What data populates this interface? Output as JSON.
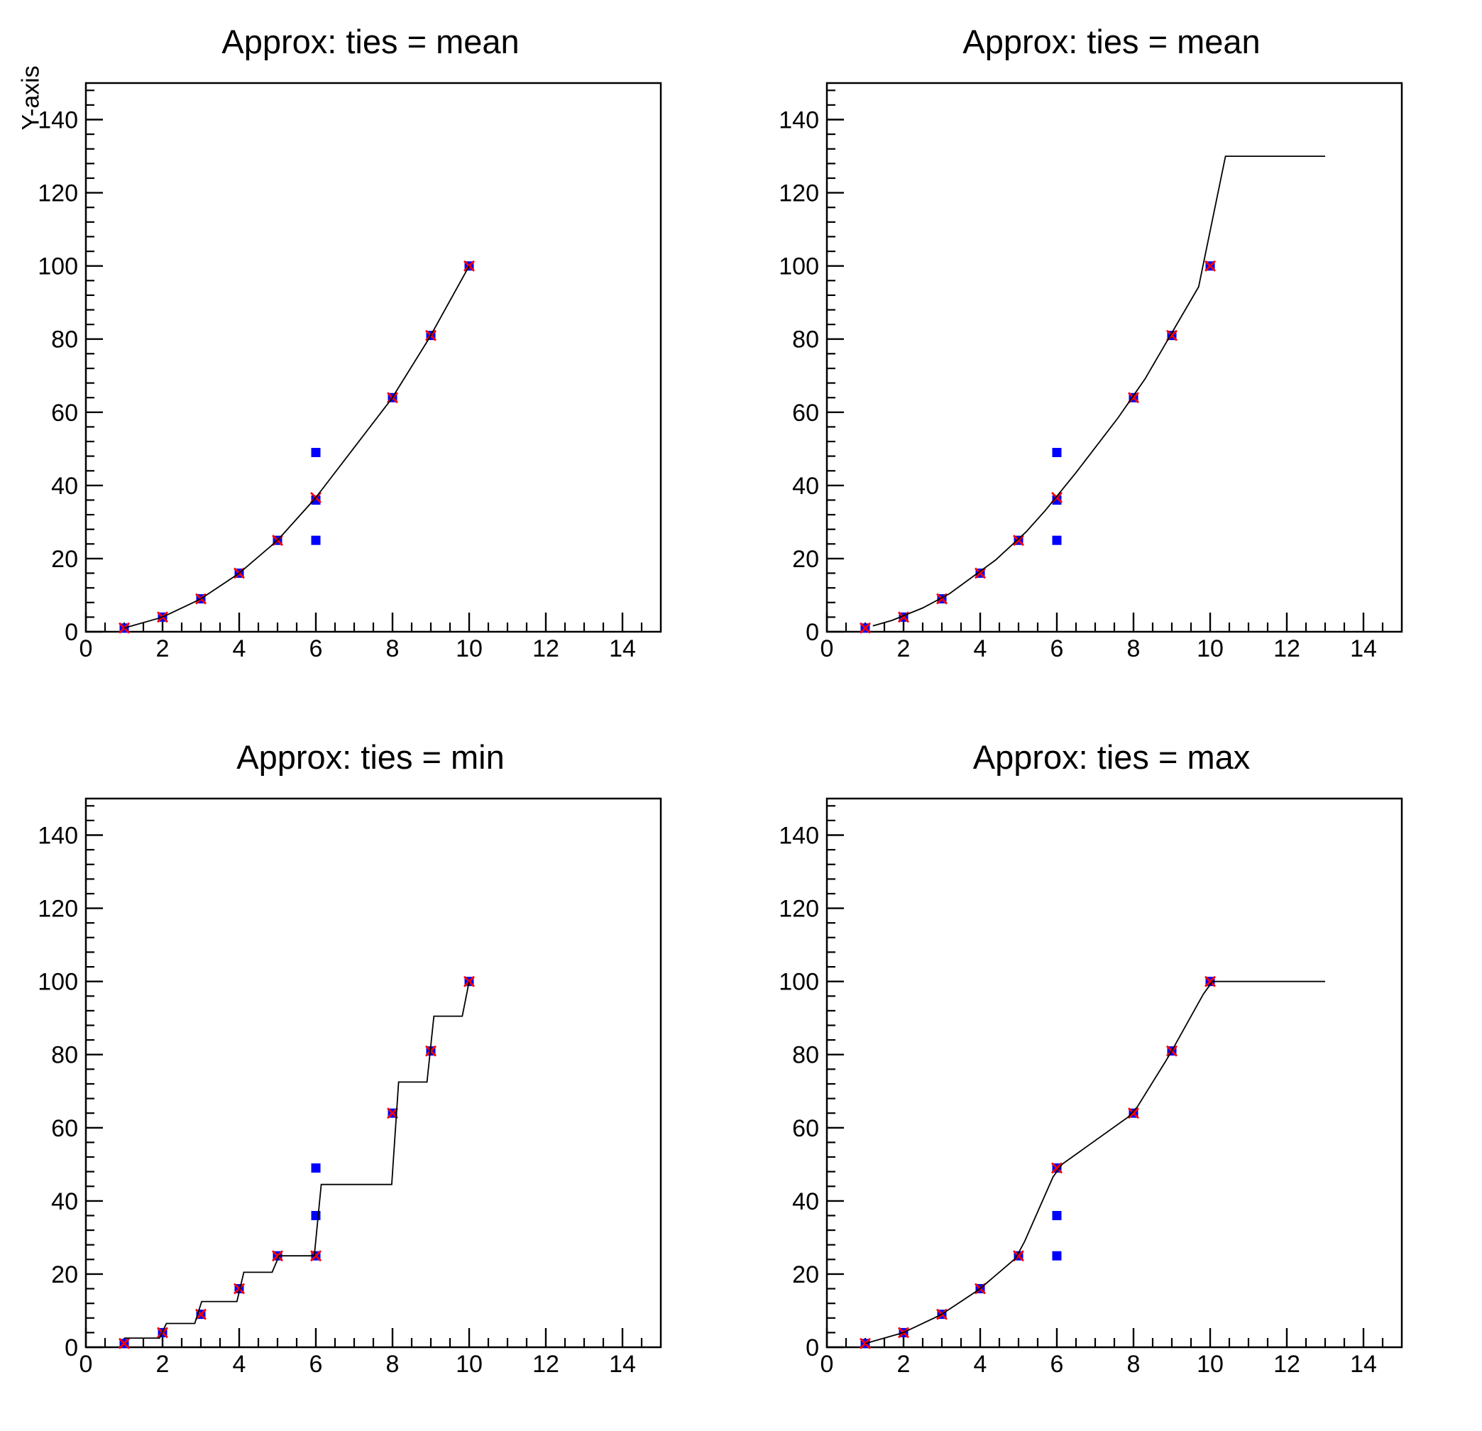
{
  "page": {
    "background": "#ffffff",
    "description": "ROOT TGraphSmooth::Approx demo canvas with four pads"
  },
  "colors": {
    "input_marker_blue": "#0000ff",
    "approx_node_red": "#ff0000",
    "curve_black": "#000000",
    "frame_black": "#000000"
  },
  "chart_data": {
    "type": "line",
    "layout": "2x2-grid",
    "grid": false,
    "legend": "none",
    "x_range": [
      0,
      15
    ],
    "y_range": [
      0,
      150
    ],
    "x_ticks": [
      0,
      2,
      4,
      6,
      8,
      10,
      12,
      14
    ],
    "y_ticks": [
      0,
      20,
      40,
      60,
      80,
      100,
      120,
      140
    ],
    "x_minor_step": 0.5,
    "y_minor_step": 4,
    "input_points": {
      "marker": "blue-filled-square",
      "x": [
        1,
        2,
        3,
        4,
        5,
        6,
        6,
        6,
        8,
        9,
        10
      ],
      "y": [
        1,
        4,
        9,
        16,
        25,
        25,
        36,
        49,
        64,
        81,
        100
      ]
    },
    "panels": [
      {
        "id": "approx-linear-ties-mean",
        "title": "Approx: ties = mean",
        "ties": "mean",
        "y_axis_title": "Y-axis",
        "x_axis_title": "",
        "node_points": [
          [
            1,
            1
          ],
          [
            2,
            4
          ],
          [
            3,
            9
          ],
          [
            4,
            16
          ],
          [
            5,
            25
          ],
          [
            6,
            36.67
          ],
          [
            8,
            64
          ],
          [
            9,
            81
          ],
          [
            10,
            100
          ]
        ],
        "curve_points": [
          [
            1,
            1
          ],
          [
            1.92,
            3.75
          ],
          [
            2.1,
            4.51
          ],
          [
            2.84,
            8.18
          ],
          [
            3.02,
            9.14
          ],
          [
            3.94,
            15.57
          ],
          [
            4.12,
            17.1
          ],
          [
            4.86,
            23.71
          ],
          [
            5.04,
            25.48
          ],
          [
            5.96,
            36.19
          ],
          [
            6.14,
            38.62
          ],
          [
            7.98,
            63.73
          ],
          [
            8.16,
            66.78
          ],
          [
            8.9,
            79.27
          ],
          [
            9.08,
            82.55
          ],
          [
            10,
            100
          ]
        ]
      },
      {
        "id": "approx-linear-ties-mean-xout",
        "title": "Approx: ties = mean",
        "ties": "mean",
        "y_axis_title": "",
        "x_axis_title": "",
        "node_points": [
          [
            1,
            1
          ],
          [
            2,
            4
          ],
          [
            3,
            9
          ],
          [
            4,
            16
          ],
          [
            5,
            25
          ],
          [
            6,
            36.67
          ],
          [
            8,
            64
          ],
          [
            9,
            81
          ],
          [
            10,
            100
          ]
        ],
        "curve_points": [
          [
            1.2,
            1.6
          ],
          [
            1.7,
            3.1
          ],
          [
            2.5,
            6.5
          ],
          [
            3.2,
            10.4
          ],
          [
            4.4,
            19.6
          ],
          [
            5.2,
            27.33
          ],
          [
            5.7,
            33.17
          ],
          [
            6.5,
            43.5
          ],
          [
            7.6,
            58.53
          ],
          [
            8.3,
            69.1
          ],
          [
            9.7,
            94.3
          ],
          [
            10.4,
            130
          ],
          [
            11.3,
            130
          ],
          [
            13,
            130
          ]
        ]
      },
      {
        "id": "approx-constant-ties-min",
        "title": "Approx: ties = min",
        "ties": "min",
        "y_axis_title": "",
        "x_axis_title": "",
        "node_points": [
          [
            1,
            1
          ],
          [
            2,
            4
          ],
          [
            3,
            9
          ],
          [
            4,
            16
          ],
          [
            5,
            25
          ],
          [
            6,
            25
          ],
          [
            8,
            64
          ],
          [
            9,
            81
          ],
          [
            10,
            100
          ]
        ],
        "curve_points": [
          [
            1,
            2.5
          ],
          [
            1.92,
            2.5
          ],
          [
            2.1,
            6.5
          ],
          [
            2.84,
            6.5
          ],
          [
            3.02,
            12.5
          ],
          [
            3.94,
            12.5
          ],
          [
            4.12,
            20.5
          ],
          [
            4.86,
            20.5
          ],
          [
            5.04,
            25
          ],
          [
            5.96,
            25
          ],
          [
            6.14,
            44.5
          ],
          [
            7.98,
            44.5
          ],
          [
            8.16,
            72.5
          ],
          [
            8.9,
            72.5
          ],
          [
            9.08,
            90.5
          ],
          [
            9.82,
            90.5
          ],
          [
            10,
            100
          ]
        ]
      },
      {
        "id": "approx-linear-ties-max",
        "title": "Approx: ties = max",
        "ties": "max",
        "y_axis_title": "",
        "x_axis_title": "",
        "node_points": [
          [
            1,
            1
          ],
          [
            2,
            4
          ],
          [
            3,
            9
          ],
          [
            4,
            16
          ],
          [
            5,
            25
          ],
          [
            6,
            49
          ],
          [
            8,
            64
          ],
          [
            9,
            81
          ],
          [
            10,
            100
          ]
        ],
        "curve_points": [
          [
            1,
            1
          ],
          [
            1.98,
            3.94
          ],
          [
            2.22,
            5.12
          ],
          [
            2.96,
            8.8
          ],
          [
            3.2,
            10.43
          ],
          [
            3.94,
            15.57
          ],
          [
            4.18,
            17.65
          ],
          [
            4.92,
            24.27
          ],
          [
            5.16,
            28.92
          ],
          [
            5.9,
            46.55
          ],
          [
            6.14,
            50.07
          ],
          [
            7.86,
            62.93
          ],
          [
            8.1,
            65.73
          ],
          [
            8.84,
            78.22
          ],
          [
            9.08,
            82.55
          ],
          [
            9.82,
            96.5
          ],
          [
            10.06,
            100
          ],
          [
            13,
            100
          ]
        ]
      }
    ]
  }
}
